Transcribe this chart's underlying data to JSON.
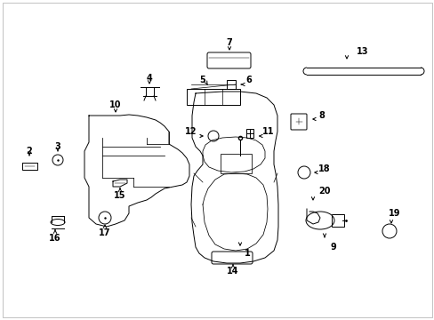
{
  "bg_color": "#ffffff",
  "fig_width": 4.89,
  "fig_height": 3.6,
  "dpi": 100,
  "lw": 0.7,
  "lc": "#000000",
  "fs": 7.0
}
